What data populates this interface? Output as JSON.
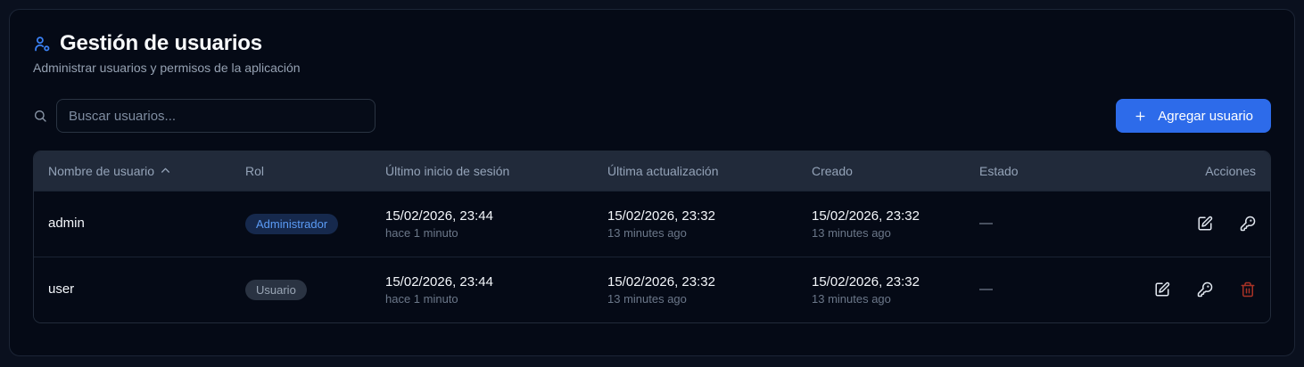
{
  "header": {
    "title": "Gestión de usuarios",
    "subtitle": "Administrar usuarios y permisos de la aplicación"
  },
  "toolbar": {
    "search_placeholder": "Buscar usuarios...",
    "add_button_label": "Agregar usuario"
  },
  "table": {
    "columns": [
      "Nombre de usuario",
      "Rol",
      "Último inicio de sesión",
      "Última actualización",
      "Creado",
      "Estado",
      "Acciones"
    ],
    "sorted_column": "Nombre de usuario",
    "sort_direction": "asc",
    "rows": [
      {
        "username": "admin",
        "role": "Administrador",
        "role_variant": "admin",
        "last_login": "15/02/2026, 23:44",
        "last_login_relative": "hace 1 minuto",
        "updated": "15/02/2026, 23:32",
        "updated_relative": "13 minutes ago",
        "created": "15/02/2026, 23:32",
        "created_relative": "13 minutes ago",
        "status": "—",
        "actions": [
          "edit",
          "key"
        ]
      },
      {
        "username": "user",
        "role": "Usuario",
        "role_variant": "user",
        "last_login": "15/02/2026, 23:44",
        "last_login_relative": "hace 1 minuto",
        "updated": "15/02/2026, 23:32",
        "updated_relative": "13 minutes ago",
        "created": "15/02/2026, 23:32",
        "created_relative": "13 minutes ago",
        "status": "—",
        "actions": [
          "edit",
          "key",
          "delete"
        ]
      }
    ]
  },
  "colors": {
    "accent": "#2d6bea",
    "icon_accent": "#3b82f6",
    "badge_admin_bg": "#16294d",
    "badge_admin_text": "#5b9bf5",
    "badge_user_bg": "#2a3342",
    "badge_user_text": "#9aa6b5",
    "delete_icon": "#a93226",
    "card_bg": "#050a16",
    "header_row_bg": "#212a3a"
  }
}
